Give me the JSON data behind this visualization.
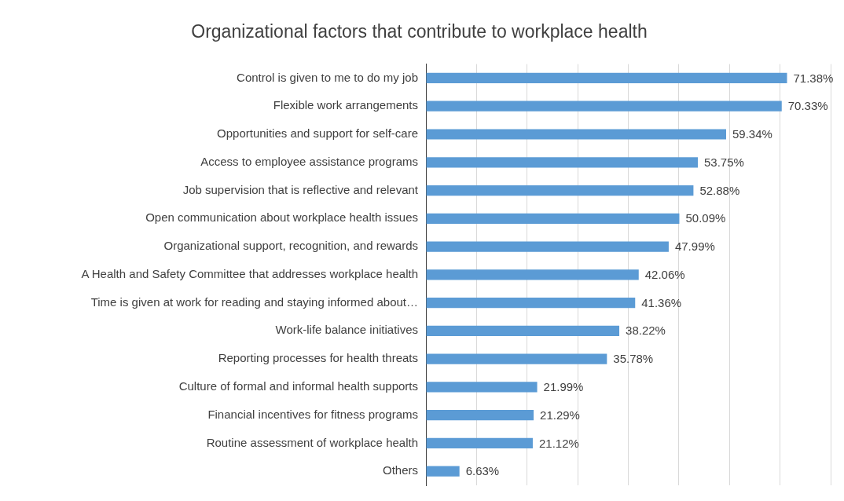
{
  "chart_data": {
    "type": "bar",
    "orientation": "horizontal",
    "title": "Organizational factors that contribute to workplace health",
    "categories": [
      "Control is given to me to do my job",
      "Flexible work arrangements",
      "Opportunities and support for self-care",
      "Access to employee assistance programs",
      "Job supervision that is reflective and relevant",
      "Open communication about workplace health issues",
      "Organizational support, recognition, and rewards",
      "A Health and Safety Committee that addresses workplace health",
      "Time is given at work for reading and staying informed about…",
      "Work-life balance initiatives",
      "Reporting processes for health threats",
      "Culture of formal and informal health supports",
      "Financial incentives for fitness programs",
      "Routine assessment of workplace health",
      "Others"
    ],
    "values": [
      71.38,
      70.33,
      59.34,
      53.75,
      52.88,
      50.09,
      47.99,
      42.06,
      41.36,
      38.22,
      35.78,
      21.99,
      21.29,
      21.12,
      6.63
    ],
    "value_labels": [
      "71.38%",
      "70.33%",
      "59.34%",
      "53.75%",
      "52.88%",
      "50.09%",
      "47.99%",
      "42.06%",
      "41.36%",
      "38.22%",
      "35.78%",
      "21.99%",
      "21.29%",
      "21.12%",
      "6.63%"
    ],
    "color": "#5b9bd5",
    "xlim": [
      0,
      80
    ],
    "xticks": [
      {
        "value": 0,
        "label": null
      },
      {
        "value": 10,
        "label": null
      },
      {
        "value": 20,
        "label": null
      },
      {
        "value": 30,
        "label": null
      },
      {
        "value": 40,
        "label": null
      },
      {
        "value": 50,
        "label": null
      },
      {
        "value": 60,
        "label": null
      },
      {
        "value": 70,
        "label": null
      },
      {
        "value": 80,
        "label": null
      }
    ],
    "grid": "x",
    "tick_labels": "y",
    "legend": false
  }
}
